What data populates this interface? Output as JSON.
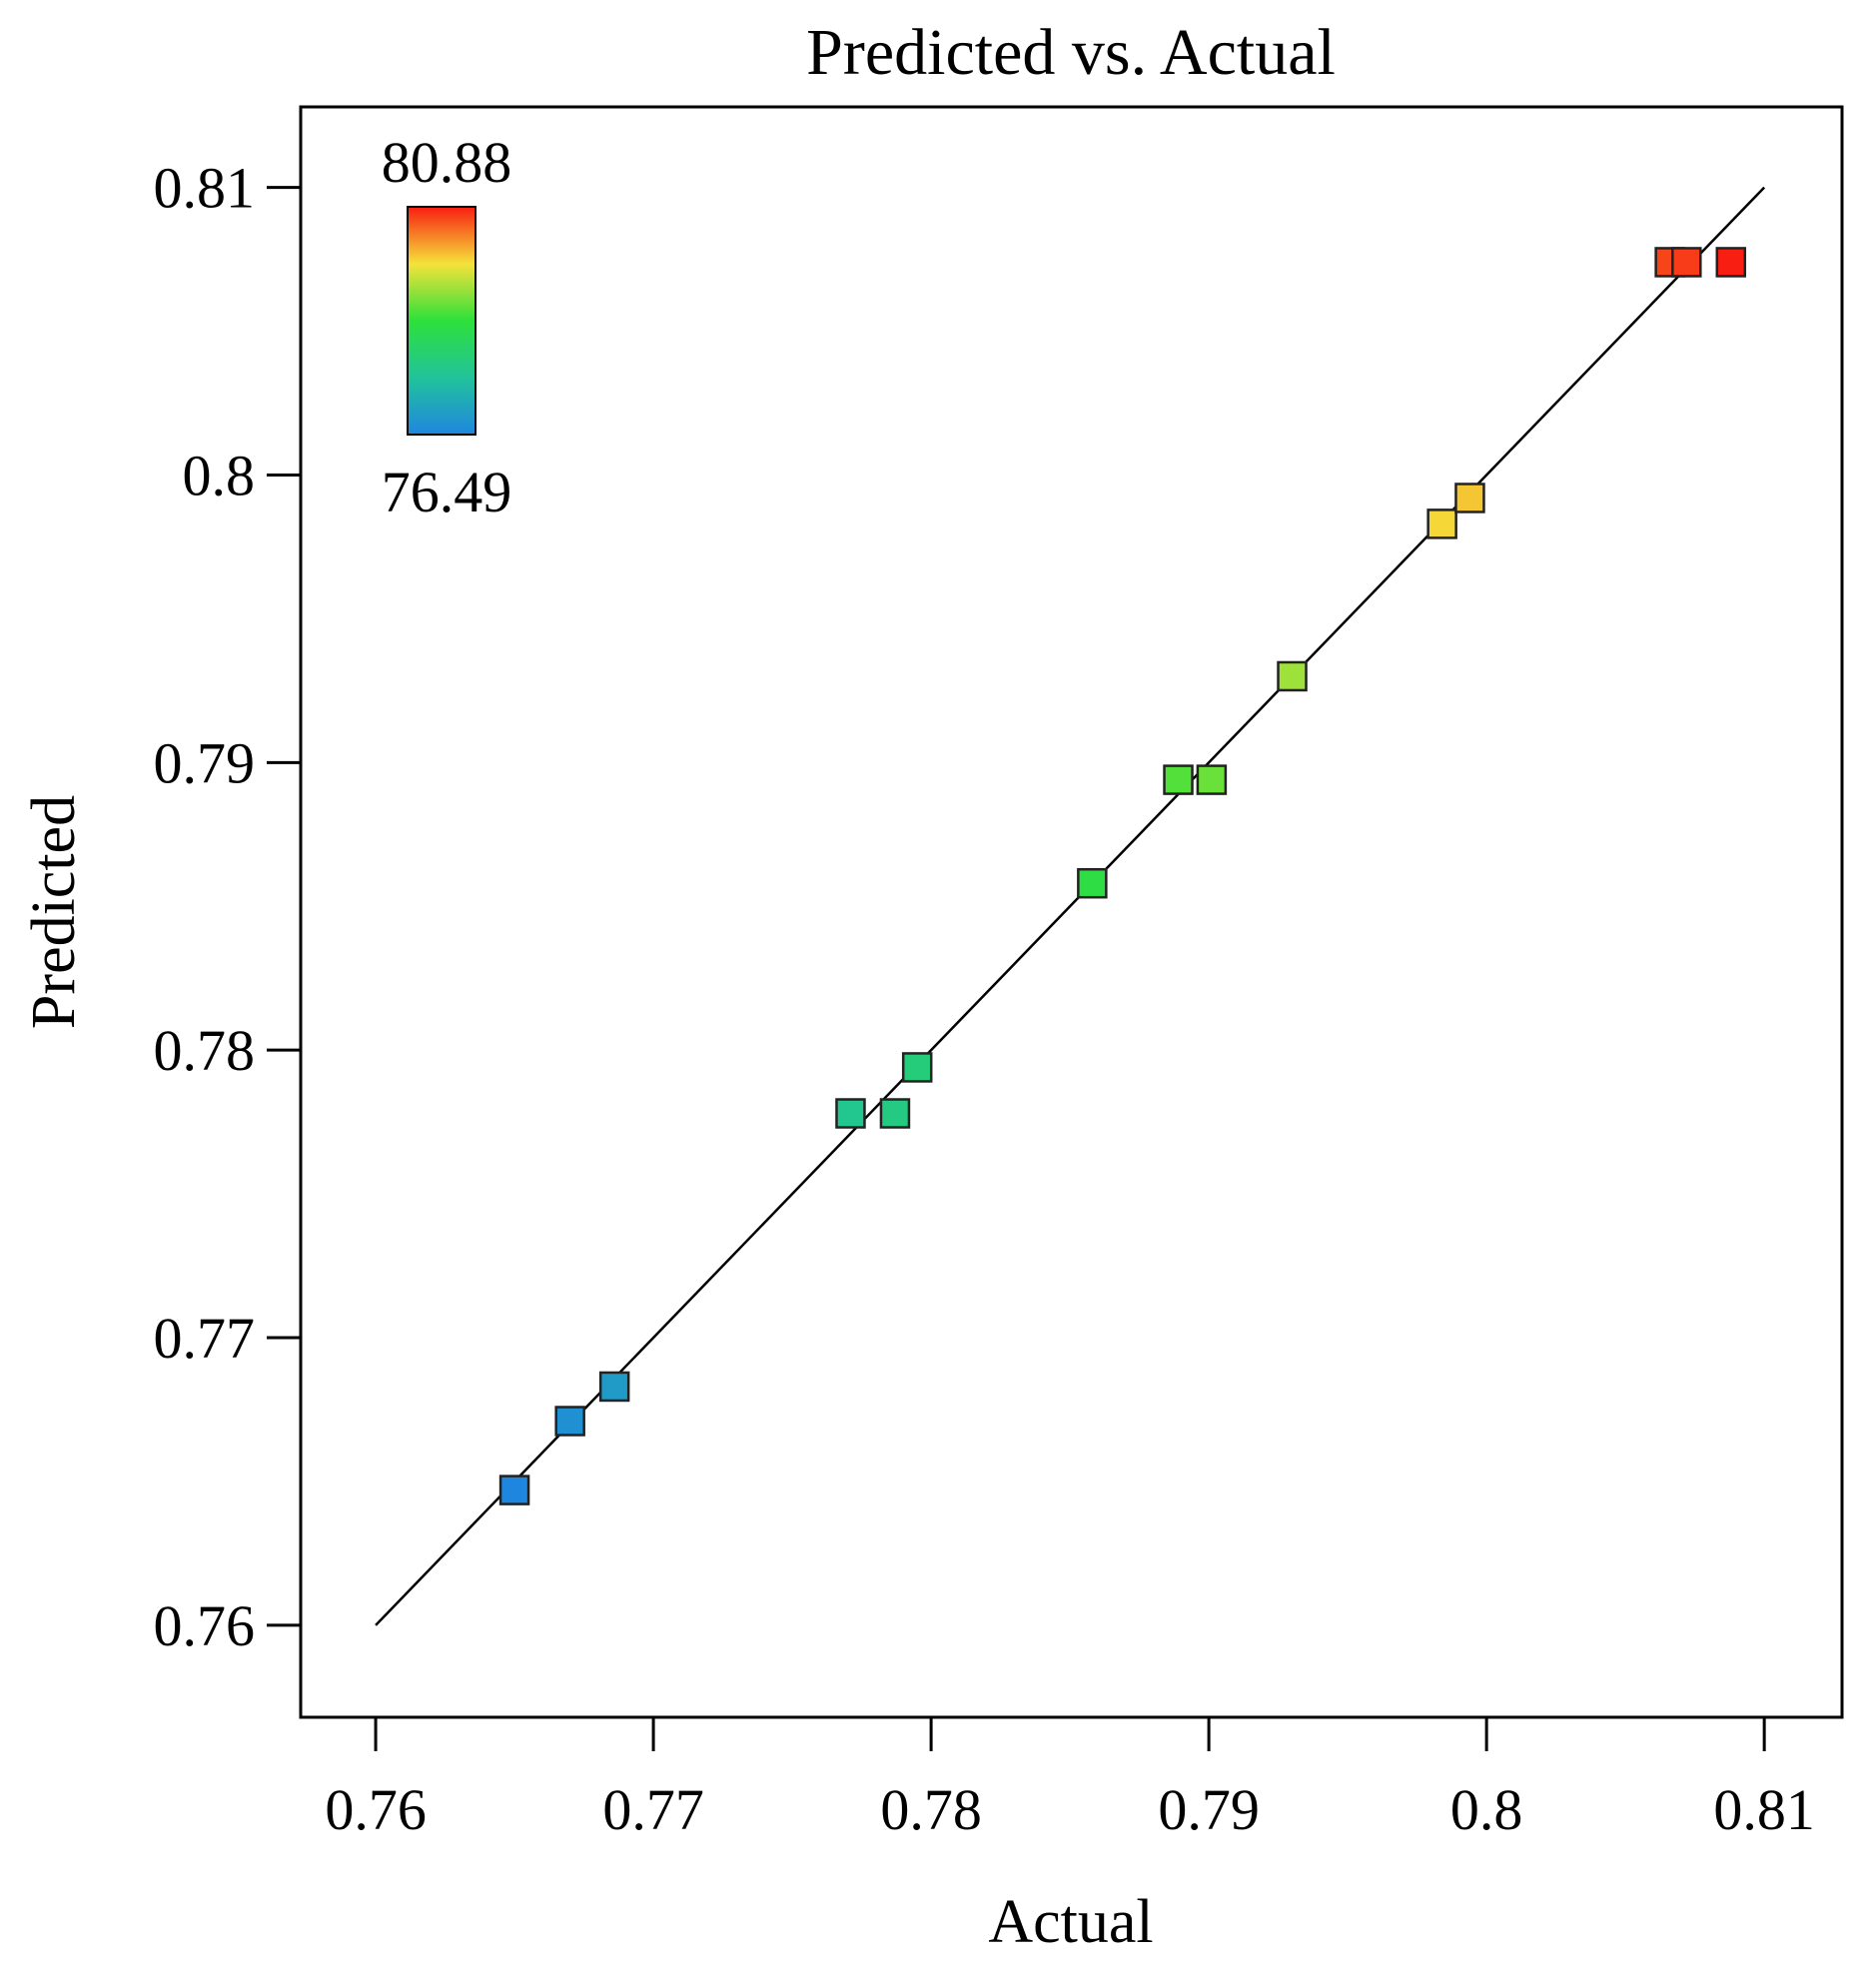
{
  "chart_data": {
    "type": "scatter",
    "title": "Predicted vs. Actual",
    "xlabel": "Actual",
    "ylabel": "Predicted",
    "xlim": [
      0.7573,
      0.8128
    ],
    "ylim": [
      0.7568,
      0.8128
    ],
    "x_ticks": [
      0.76,
      0.77,
      0.78,
      0.79,
      0.8,
      0.81
    ],
    "x_tick_labels": [
      "0.76",
      "0.77",
      "0.78",
      "0.79",
      "0.8",
      "0.81"
    ],
    "y_ticks": [
      0.76,
      0.77,
      0.78,
      0.79,
      0.8,
      0.81
    ],
    "y_tick_labels": [
      "0.76",
      "0.77",
      "0.78",
      "0.79",
      "0.8",
      "0.81"
    ],
    "grid": false,
    "reference_line": {
      "from": [
        0.76,
        0.76
      ],
      "to": [
        0.81,
        0.81
      ]
    },
    "color_scale": {
      "max_label": "80.88",
      "min_label": "76.49",
      "min": 76.49,
      "max": 80.88,
      "colors": [
        "#1f86e0",
        "#21c39a",
        "#2ee03a",
        "#f5e23a",
        "#f81e12"
      ],
      "placement": "top-left"
    },
    "points": [
      {
        "x": 0.765,
        "y": 0.7647,
        "value": 76.49
      },
      {
        "x": 0.767,
        "y": 0.7671,
        "value": 76.69
      },
      {
        "x": 0.7686,
        "y": 0.7683,
        "value": 76.86
      },
      {
        "x": 0.7771,
        "y": 0.7778,
        "value": 77.71
      },
      {
        "x": 0.7787,
        "y": 0.7778,
        "value": 77.87
      },
      {
        "x": 0.7795,
        "y": 0.7794,
        "value": 77.95
      },
      {
        "x": 0.7858,
        "y": 0.7858,
        "value": 78.58
      },
      {
        "x": 0.7889,
        "y": 0.7894,
        "value": 78.89
      },
      {
        "x": 0.7901,
        "y": 0.7894,
        "value": 79.01
      },
      {
        "x": 0.793,
        "y": 0.793,
        "value": 79.3
      },
      {
        "x": 0.7984,
        "y": 0.7983,
        "value": 79.84
      },
      {
        "x": 0.7994,
        "y": 0.7992,
        "value": 79.94
      },
      {
        "x": 0.8066,
        "y": 0.8074,
        "value": 80.66
      },
      {
        "x": 0.8072,
        "y": 0.8074,
        "value": 80.72
      },
      {
        "x": 0.8088,
        "y": 0.8074,
        "value": 80.88
      }
    ]
  }
}
